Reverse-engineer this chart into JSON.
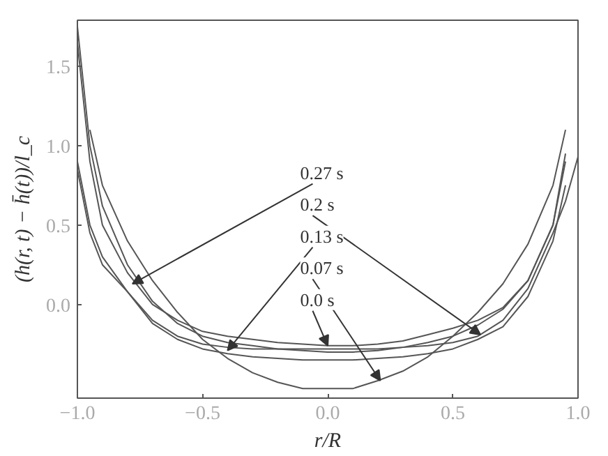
{
  "chart_data": {
    "type": "line",
    "xlabel": "r/R",
    "ylabel": "(h(r, t) − h̄(t))/l_c",
    "xlim": [
      -1.0,
      1.0
    ],
    "ylim": [
      -0.59,
      1.79
    ],
    "xticks": [
      {
        "value": -1.0,
        "label": "−1.0"
      },
      {
        "value": -0.5,
        "label": "−0.5"
      },
      {
        "value": 0.0,
        "label": "0.0"
      },
      {
        "value": 0.5,
        "label": "0.5"
      },
      {
        "value": 1.0,
        "label": "1.0"
      }
    ],
    "yticks": [
      {
        "value": 0.0,
        "label": "0.0"
      },
      {
        "value": 0.5,
        "label": "0.5"
      },
      {
        "value": 1.0,
        "label": "1.0"
      },
      {
        "value": 1.5,
        "label": "1.5"
      }
    ],
    "grid": false,
    "line_style": "solid",
    "marker": "none",
    "x": [
      -1.0,
      -0.95,
      -0.9,
      -0.8,
      -0.7,
      -0.6,
      -0.5,
      -0.4,
      -0.3,
      -0.2,
      -0.1,
      0.0,
      0.1,
      0.2,
      0.3,
      0.4,
      0.5,
      0.6,
      0.7,
      0.8,
      0.9,
      0.95,
      1.0
    ],
    "series": [
      {
        "color": "#555555",
        "values": [
          1.65,
          0.9,
          0.5,
          0.2,
          0.0,
          -0.1,
          -0.17,
          -0.2,
          -0.22,
          -0.24,
          -0.25,
          -0.26,
          -0.26,
          -0.25,
          -0.23,
          -0.19,
          -0.15,
          -0.1,
          -0.02,
          0.15,
          0.5,
          0.9,
          null
        ]
      },
      {
        "color": "#555555",
        "values": [
          null,
          1.1,
          0.75,
          0.4,
          0.15,
          -0.05,
          -0.22,
          -0.34,
          -0.43,
          -0.49,
          -0.53,
          -0.53,
          -0.53,
          -0.48,
          -0.42,
          -0.33,
          -0.2,
          -0.05,
          0.13,
          0.38,
          0.75,
          1.1,
          null
        ]
      },
      {
        "color": "#555555",
        "values": [
          1.75,
          1.0,
          0.62,
          0.25,
          0.02,
          -0.12,
          -0.2,
          -0.24,
          -0.26,
          -0.28,
          -0.29,
          -0.3,
          -0.3,
          -0.29,
          -0.27,
          -0.24,
          -0.2,
          -0.13,
          -0.03,
          0.15,
          0.5,
          0.95,
          null
        ]
      },
      {
        "color": "#555555",
        "values": [
          0.9,
          0.5,
          0.3,
          0.08,
          -0.1,
          -0.2,
          -0.25,
          -0.27,
          -0.28,
          -0.28,
          -0.28,
          -0.28,
          -0.28,
          -0.28,
          -0.27,
          -0.26,
          -0.24,
          -0.2,
          -0.1,
          0.1,
          0.45,
          0.65,
          0.93
        ]
      },
      {
        "color": "#555555",
        "values": [
          0.85,
          0.45,
          0.25,
          0.08,
          -0.12,
          -0.22,
          -0.28,
          -0.31,
          -0.33,
          -0.34,
          -0.35,
          -0.35,
          -0.35,
          -0.34,
          -0.33,
          -0.31,
          -0.28,
          -0.22,
          -0.14,
          0.05,
          0.4,
          0.75,
          null
        ]
      }
    ],
    "annotations": [
      {
        "text": "0.27 s",
        "x": -0.78,
        "y": 0.13
      },
      {
        "text": "0.2 s",
        "x": 0.61,
        "y": -0.19
      },
      {
        "text": "0.13 s",
        "x": -0.4,
        "y": -0.29
      },
      {
        "text": "0.07 s",
        "x": 0.21,
        "y": -0.48
      },
      {
        "text": "0.0 s",
        "x": 0.0,
        "y": -0.26
      }
    ]
  }
}
